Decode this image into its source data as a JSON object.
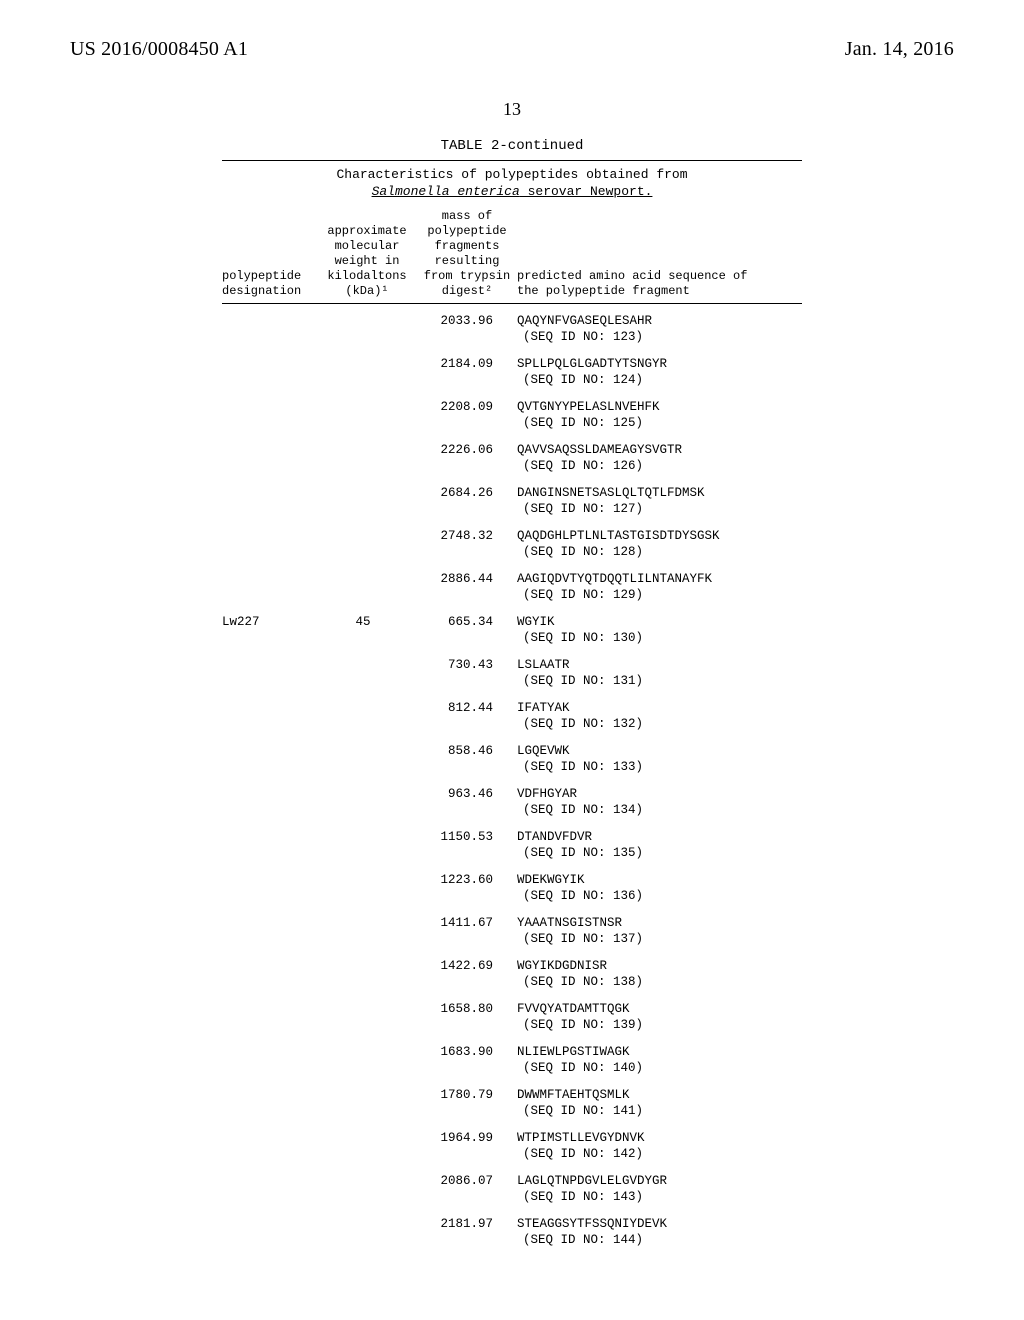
{
  "header": {
    "left": "US 2016/0008450 A1",
    "right": "Jan. 14, 2016"
  },
  "page_number": "13",
  "table": {
    "caption": "TABLE 2-continued",
    "subtitle_line1": "Characteristics of polypeptides obtained from",
    "subtitle_scientific": "Salmonella enterica",
    "subtitle_rest": " serovar Newport.",
    "columns": {
      "c1_l1": "polypeptide",
      "c1_l2": "designation",
      "c2_l1": "approximate",
      "c2_l2": "molecular",
      "c2_l3": "weight in",
      "c2_l4": "kilodaltons",
      "c2_l5": "(kDa)¹",
      "c3_l1": "mass of",
      "c3_l2": "polypeptide",
      "c3_l3": "fragments",
      "c3_l4": "resulting",
      "c3_l5": "from trypsin",
      "c3_l6": "digest²",
      "c4_l1": "predicted amino acid sequence of",
      "c4_l2": "the polypeptide fragment"
    },
    "rows": [
      {
        "c1": "",
        "c2": "",
        "c3": "2033.96",
        "seq": "QAQYNFVGASEQLESAHR",
        "seqid": "(SEQ ID NO: 123)"
      },
      {
        "c1": "",
        "c2": "",
        "c3": "2184.09",
        "seq": "SPLLPQLGLGADTYTSNGYR",
        "seqid": "(SEQ ID NO: 124)"
      },
      {
        "c1": "",
        "c2": "",
        "c3": "2208.09",
        "seq": "QVTGNYYPELASLNVEHFK",
        "seqid": "(SEQ ID NO: 125)"
      },
      {
        "c1": "",
        "c2": "",
        "c3": "2226.06",
        "seq": "QAVVSAQSSLDAMEAGYSVGTR",
        "seqid": "(SEQ ID NO: 126)"
      },
      {
        "c1": "",
        "c2": "",
        "c3": "2684.26",
        "seq": "DANGINSNETSASLQLTQTLFDMSK",
        "seqid": "(SEQ ID NO: 127)"
      },
      {
        "c1": "",
        "c2": "",
        "c3": "2748.32",
        "seq": "QAQDGHLPTLNLTASTGISDTDYSGSK",
        "seqid": "(SEQ ID NO: 128)"
      },
      {
        "c1": "",
        "c2": "",
        "c3": "2886.44",
        "seq": "AAGIQDVTYQTDQQTLILNTANAYFK",
        "seqid": "(SEQ ID NO: 129)"
      },
      {
        "c1": "Lw227",
        "c2": "45",
        "c3": "665.34",
        "seq": "WGYIK",
        "seqid": "(SEQ ID NO: 130)"
      },
      {
        "c1": "",
        "c2": "",
        "c3": "730.43",
        "seq": "LSLAATR",
        "seqid": "(SEQ ID NO: 131)"
      },
      {
        "c1": "",
        "c2": "",
        "c3": "812.44",
        "seq": "IFATYAK",
        "seqid": "(SEQ ID NO: 132)"
      },
      {
        "c1": "",
        "c2": "",
        "c3": "858.46",
        "seq": "LGQEVWK",
        "seqid": "(SEQ ID NO: 133)"
      },
      {
        "c1": "",
        "c2": "",
        "c3": "963.46",
        "seq": "VDFHGYAR",
        "seqid": "(SEQ ID NO: 134)"
      },
      {
        "c1": "",
        "c2": "",
        "c3": "1150.53",
        "seq": "DTANDVFDVR",
        "seqid": "(SEQ ID NO: 135)"
      },
      {
        "c1": "",
        "c2": "",
        "c3": "1223.60",
        "seq": "WDEKWGYIK",
        "seqid": "(SEQ ID NO: 136)"
      },
      {
        "c1": "",
        "c2": "",
        "c3": "1411.67",
        "seq": "YAAATNSGISTNSR",
        "seqid": "(SEQ ID NO: 137)"
      },
      {
        "c1": "",
        "c2": "",
        "c3": "1422.69",
        "seq": "WGYIKDGDNISR",
        "seqid": "(SEQ ID NO: 138)"
      },
      {
        "c1": "",
        "c2": "",
        "c3": "1658.80",
        "seq": "FVVQYATDAMTTQGK",
        "seqid": "(SEQ ID NO: 139)"
      },
      {
        "c1": "",
        "c2": "",
        "c3": "1683.90",
        "seq": "NLIEWLPGSTIWAGK",
        "seqid": "(SEQ ID NO: 140)"
      },
      {
        "c1": "",
        "c2": "",
        "c3": "1780.79",
        "seq": "DWWMFTAEHTQSMLK",
        "seqid": "(SEQ ID NO: 141)"
      },
      {
        "c1": "",
        "c2": "",
        "c3": "1964.99",
        "seq": "WTPIMSTLLEVGYDNVK",
        "seqid": "(SEQ ID NO: 142)"
      },
      {
        "c1": "",
        "c2": "",
        "c3": "2086.07",
        "seq": "LAGLQTNPDGVLELGVDYGR",
        "seqid": "(SEQ ID NO: 143)"
      },
      {
        "c1": "",
        "c2": "",
        "c3": "2181.97",
        "seq": "STEAGGSYTFSSQNIYDEVK",
        "seqid": "(SEQ ID NO: 144)"
      }
    ]
  }
}
